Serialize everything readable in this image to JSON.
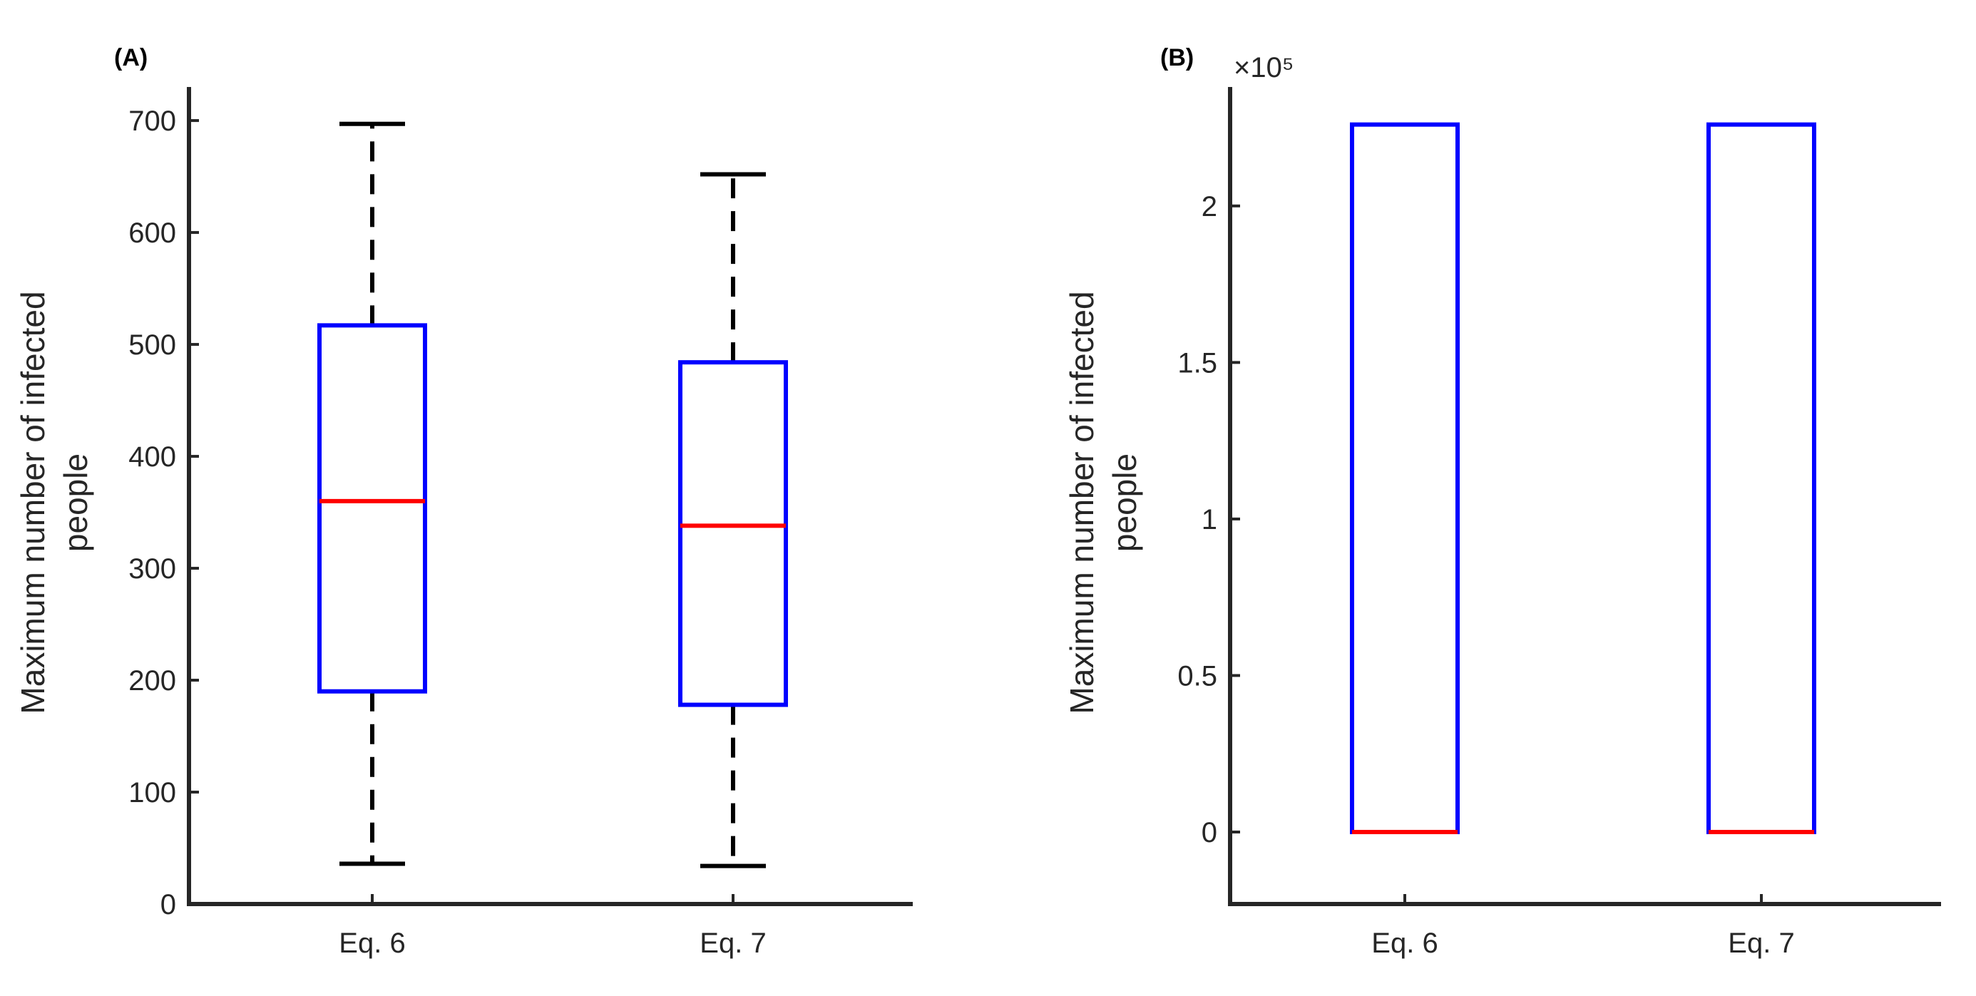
{
  "chart_data": [
    {
      "type": "box",
      "panel_label": "(A)",
      "categories": [
        "Eq. 6",
        "Eq. 7"
      ],
      "ylabel_lines": [
        "Maximum number of infected",
        "people"
      ],
      "ylim": [
        0,
        730
      ],
      "yticks": [
        0,
        100,
        200,
        300,
        400,
        500,
        600,
        700
      ],
      "ytick_labels": [
        "0",
        "100",
        "200",
        "300",
        "400",
        "500",
        "600",
        "700"
      ],
      "exponent_label": "",
      "boxes": [
        {
          "min": 36,
          "q1": 190,
          "median": 360,
          "q3": 517,
          "max": 697
        },
        {
          "min": 34,
          "q1": 178,
          "median": 338,
          "q3": 484,
          "max": 652
        }
      ],
      "colors": {
        "box": "#0000ff",
        "median": "#ff0000",
        "whisker": "#000000"
      }
    },
    {
      "type": "box",
      "panel_label": "(B)",
      "categories": [
        "Eq. 6",
        "Eq. 7"
      ],
      "ylabel_lines": [
        "Maximum number of infected",
        "people"
      ],
      "ylim": [
        -23000,
        238000
      ],
      "yticks": [
        0,
        50000,
        100000,
        150000,
        200000
      ],
      "ytick_labels": [
        "0",
        "0.5",
        "1",
        "1.5",
        "2"
      ],
      "exponent_label": "×10⁵",
      "boxes": [
        {
          "min": 0,
          "q1": 0,
          "median": 0,
          "q3": 226000,
          "max": 226000
        },
        {
          "min": 0,
          "q1": 0,
          "median": 0,
          "q3": 226000,
          "max": 226000
        }
      ],
      "colors": {
        "box": "#0000ff",
        "median": "#ff0000",
        "whisker": "#000000"
      }
    }
  ]
}
